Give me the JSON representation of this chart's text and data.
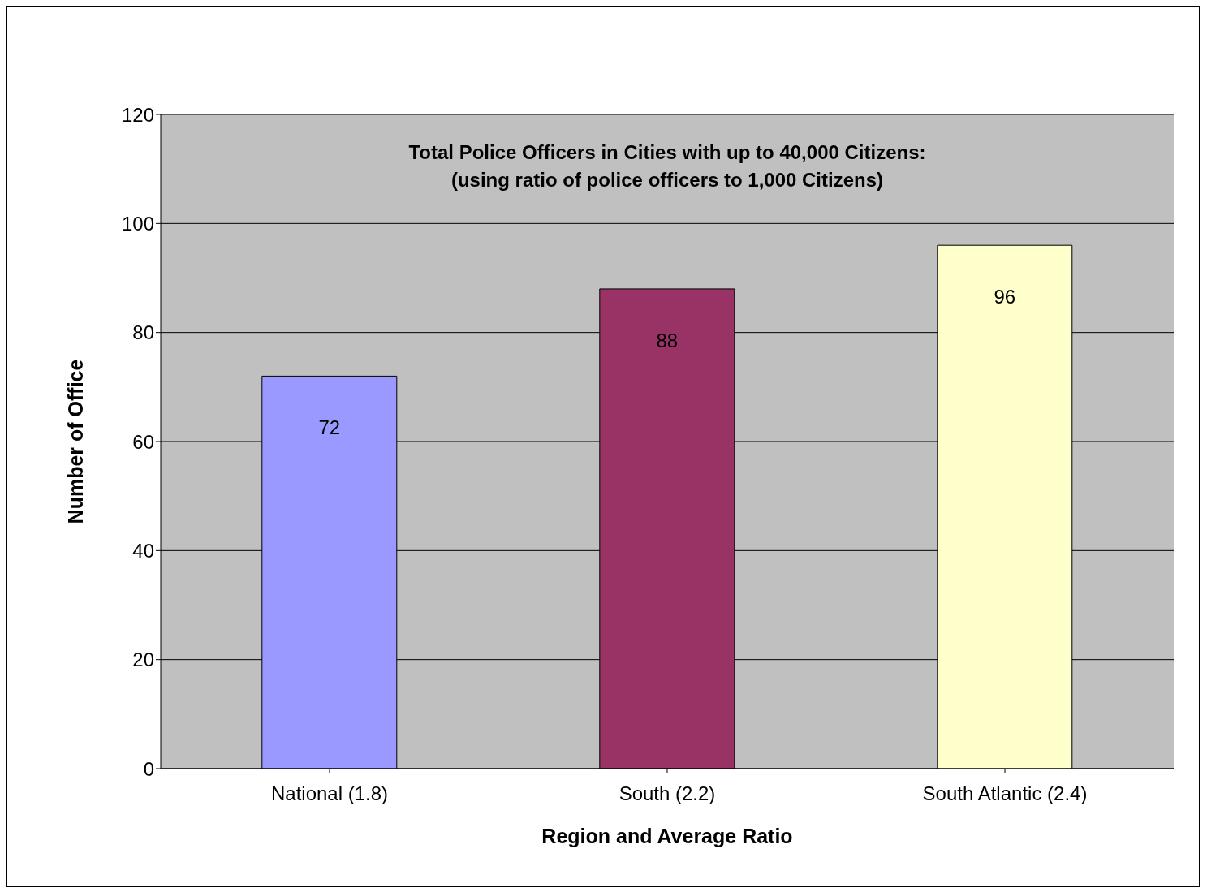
{
  "chart_data": {
    "type": "bar",
    "title": "Total Police Officers in Cities with up to 40,000 Citizens:",
    "subtitle": "(using ratio of police officers to 1,000 Citizens)",
    "xlabel": "Region and Average Ratio",
    "ylabel": "Number of Office",
    "categories": [
      "National (1.8)",
      "South (2.2)",
      "South Atlantic (2.4)"
    ],
    "values": [
      72,
      88,
      96
    ],
    "colors": [
      "#9999ff",
      "#993366",
      "#ffffcc"
    ],
    "ylim": [
      0,
      120
    ],
    "yticks": [
      0,
      20,
      40,
      60,
      80,
      100,
      120
    ],
    "grid": "y",
    "data_labels": true
  }
}
